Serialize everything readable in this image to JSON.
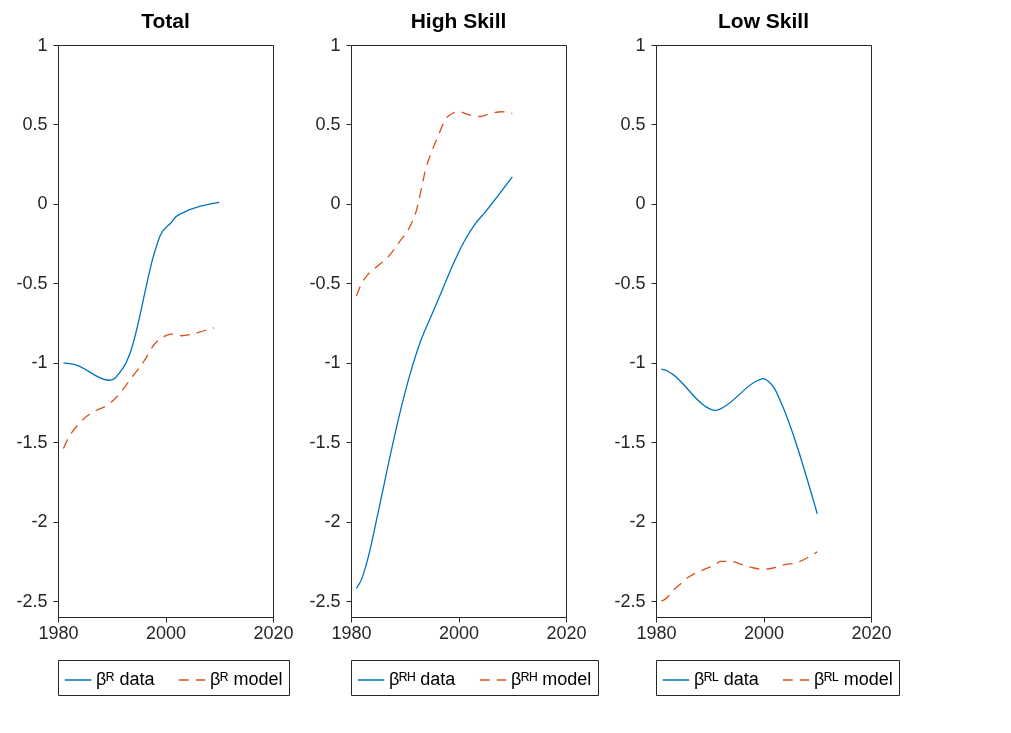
{
  "chart_data": [
    {
      "type": "line",
      "title": "Total",
      "xlim": [
        1980,
        2020
      ],
      "xticks": [
        1980,
        2000,
        2020
      ],
      "ylim": [
        -2.6,
        1
      ],
      "yticks": [
        -2.5,
        -2,
        -1.5,
        -1,
        -0.5,
        0,
        0.5,
        1
      ],
      "grid": false,
      "legend": "bottom",
      "series": [
        {
          "name": "βᴿ data",
          "color": "#0072bd",
          "line_style": "solid",
          "x": [
            1981,
            1983,
            1989.5,
            1990.5,
            1991.5,
            1992.5,
            1993.5,
            1998,
            1999,
            2001,
            2002,
            2003,
            2010
          ],
          "values": [
            -1.0,
            -1.01,
            -1.11,
            -1.1,
            -1.06,
            -1.01,
            -0.93,
            -0.3,
            -0.2,
            -0.12,
            -0.08,
            -0.06,
            0.01
          ]
        },
        {
          "name": "βᴿ model",
          "color": "#d95319",
          "line_style": "dashed",
          "x": [
            1981,
            1982,
            1984,
            1986,
            1989,
            1990.5,
            1992,
            1994,
            1996,
            1998,
            1999.5,
            2001,
            2003,
            2005,
            2007,
            2009
          ],
          "values": [
            -1.54,
            -1.47,
            -1.38,
            -1.32,
            -1.27,
            -1.23,
            -1.17,
            -1.08,
            -0.99,
            -0.88,
            -0.84,
            -0.82,
            -0.83,
            -0.82,
            -0.8,
            -0.78
          ]
        }
      ]
    },
    {
      "type": "line",
      "title": "High Skill",
      "xlim": [
        1980,
        2020
      ],
      "xticks": [
        1980,
        2000,
        2020
      ],
      "ylim": [
        -2.6,
        1
      ],
      "yticks": [
        -2.5,
        -2,
        -1.5,
        -1,
        -0.5,
        0,
        0.5,
        1
      ],
      "grid": false,
      "legend": "bottom",
      "series": [
        {
          "name": "βᴿᴴ data",
          "color": "#0072bd",
          "line_style": "solid",
          "x": [
            1981,
            1982,
            1983,
            1985,
            1987,
            1989,
            1991,
            1993,
            1995,
            1997,
            1999,
            2001,
            2003,
            2005,
            2010
          ],
          "values": [
            -2.42,
            -2.36,
            -2.25,
            -1.95,
            -1.63,
            -1.33,
            -1.07,
            -0.86,
            -0.7,
            -0.54,
            -0.38,
            -0.24,
            -0.13,
            -0.05,
            0.17
          ]
        },
        {
          "name": "βᴿᴴ model",
          "color": "#d95319",
          "line_style": "dashed",
          "x": [
            1981,
            1982,
            1983,
            1985,
            1987,
            1989,
            1991,
            1992,
            1994,
            1996,
            1998,
            2000,
            2002,
            2004,
            2006,
            2008,
            2010
          ],
          "values": [
            -0.58,
            -0.5,
            -0.45,
            -0.39,
            -0.33,
            -0.24,
            -0.14,
            -0.06,
            0.23,
            0.41,
            0.55,
            0.58,
            0.56,
            0.55,
            0.57,
            0.58,
            0.57
          ]
        }
      ]
    },
    {
      "type": "line",
      "title": "Low Skill",
      "xlim": [
        1980,
        2020
      ],
      "xticks": [
        1980,
        2000,
        2020
      ],
      "ylim": [
        -2.6,
        1
      ],
      "yticks": [
        -2.5,
        -2,
        -1.5,
        -1,
        -0.5,
        0,
        0.5,
        1
      ],
      "grid": false,
      "legend": "bottom",
      "series": [
        {
          "name": "βᴿᴸ data",
          "color": "#0072bd",
          "line_style": "solid",
          "x": [
            1981,
            1982,
            1983,
            1989,
            1990,
            1991,
            1992,
            1993,
            1999,
            2000,
            2001,
            2002,
            2003,
            2010
          ],
          "values": [
            -1.04,
            -1.05,
            -1.07,
            -1.27,
            -1.29,
            -1.3,
            -1.29,
            -1.27,
            -1.11,
            -1.1,
            -1.12,
            -1.16,
            -1.23,
            -1.95
          ]
        },
        {
          "name": "βᴿᴸ model",
          "color": "#d95319",
          "line_style": "dashed",
          "x": [
            1981,
            1982,
            1983,
            1985,
            1986,
            1987,
            1989,
            1991,
            1992,
            1994,
            1996,
            1998,
            2000,
            2002,
            2004,
            2006,
            2008,
            2010
          ],
          "values": [
            -2.5,
            -2.48,
            -2.44,
            -2.38,
            -2.35,
            -2.33,
            -2.3,
            -2.27,
            -2.25,
            -2.25,
            -2.27,
            -2.29,
            -2.3,
            -2.29,
            -2.27,
            -2.26,
            -2.23,
            -2.19
          ]
        }
      ]
    }
  ]
}
